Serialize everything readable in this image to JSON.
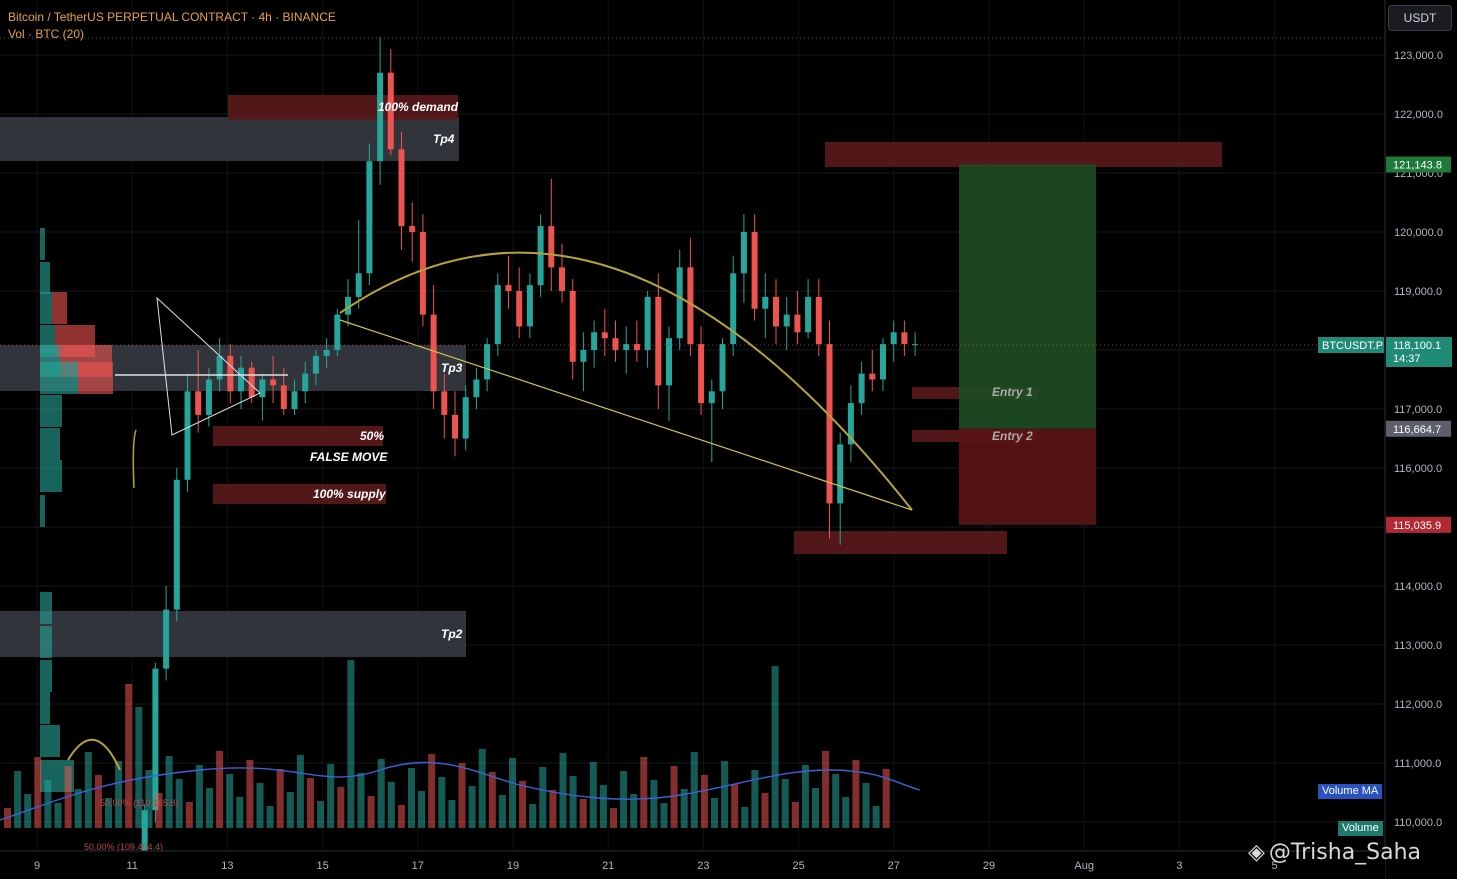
{
  "header": {
    "title": "Bitcoin / TetherUS PERPETUAL CONTRACT · 4h · BINANCE",
    "indicator": "Vol · BTC (20)"
  },
  "currency_button": "USDT",
  "watermark": "@Trisha_Saha",
  "price_axis": {
    "ticks": [
      "123,000.0",
      "122,000.0",
      "121,000.0",
      "120,000.0",
      "119,000.0",
      "118,000.0",
      "117,000.0",
      "116,000.0",
      "115,000.0",
      "114,000.0",
      "113,000.0",
      "112,000.0",
      "111,000.0",
      "110,000.0"
    ],
    "symbol_tag": "BTCUSDT.P",
    "last_price": "118,100.1",
    "countdown": "14:37",
    "target_price": "121,143.8",
    "entry_price": "116,664.7",
    "stop_price": "115,035.9"
  },
  "time_axis": {
    "ticks": [
      "9",
      "11",
      "13",
      "15",
      "17",
      "19",
      "21",
      "23",
      "25",
      "27",
      "29",
      "Aug",
      "3",
      "5"
    ]
  },
  "volume_labels": {
    "ma": "Volume MA",
    "volume": "Volume"
  },
  "zones": {
    "demand": "100% demand",
    "tp4": "Tp4",
    "tp3": "Tp3",
    "tp2": "Tp2",
    "half": "50%",
    "false_move": "FALSE MOVE",
    "supply": "100% supply",
    "entry1": "Entry 1",
    "entry2": "Entry 2"
  },
  "mini_fib": {
    "level1": "50.00% (110,165.8)",
    "level2": "50.00% (109,404.4)"
  },
  "colors": {
    "up": "#26a69a",
    "down": "#ef5350",
    "curve": "#b5a23a",
    "trendline": "#d4c24a",
    "zone_gray": "#3a3d44",
    "zone_red": "#5a1a1c",
    "target_green": "#1e4d22",
    "stop_red": "#5c1416",
    "ma_line": "#3a63d6"
  },
  "chart_data": {
    "type": "candlestick",
    "symbol": "BTCUSDT.P",
    "timeframe": "4h",
    "y_range": [
      109800,
      123300
    ],
    "dates": [
      "9",
      "11",
      "13",
      "15",
      "17",
      "19",
      "21",
      "23",
      "25",
      "27",
      "29",
      "Aug",
      "3",
      "5"
    ],
    "candles": [
      [
        108800,
        109400,
        108500,
        109300
      ],
      [
        109300,
        110300,
        109100,
        110200
      ],
      [
        110200,
        112700,
        110000,
        112600
      ],
      [
        112600,
        114000,
        112400,
        113600
      ],
      [
        113600,
        116000,
        113400,
        115800
      ],
      [
        115800,
        117600,
        115600,
        117300
      ],
      [
        117300,
        118000,
        116600,
        116900
      ],
      [
        116900,
        117700,
        116700,
        117500
      ],
      [
        117500,
        118200,
        117300,
        117900
      ],
      [
        117900,
        118100,
        117100,
        117300
      ],
      [
        117300,
        117900,
        117000,
        117700
      ],
      [
        117700,
        117800,
        117100,
        117200
      ],
      [
        117200,
        117600,
        116800,
        117500
      ],
      [
        117500,
        117900,
        117100,
        117400
      ],
      [
        117400,
        117700,
        116900,
        117000
      ],
      [
        117000,
        117500,
        116900,
        117300
      ],
      [
        117300,
        117800,
        117100,
        117600
      ],
      [
        117600,
        118000,
        117400,
        117900
      ],
      [
        117900,
        118200,
        117700,
        118000
      ],
      [
        118000,
        118700,
        117900,
        118600
      ],
      [
        118600,
        119200,
        118400,
        118900
      ],
      [
        118900,
        120200,
        118700,
        119300
      ],
      [
        119300,
        121500,
        119100,
        121200
      ],
      [
        121200,
        123300,
        120800,
        122700
      ],
      [
        122700,
        123100,
        121300,
        121400
      ],
      [
        121400,
        121700,
        119700,
        120100
      ],
      [
        120100,
        120500,
        119500,
        120000
      ],
      [
        120000,
        120300,
        118400,
        118600
      ],
      [
        118600,
        119100,
        117000,
        117300
      ],
      [
        117300,
        117600,
        116500,
        116900
      ],
      [
        116900,
        117300,
        116200,
        116500
      ],
      [
        116500,
        117400,
        116300,
        117200
      ],
      [
        117200,
        117700,
        117000,
        117500
      ],
      [
        117500,
        118200,
        117300,
        118100
      ],
      [
        118100,
        119300,
        117900,
        119100
      ],
      [
        119100,
        119600,
        118700,
        119000
      ],
      [
        119000,
        119400,
        118200,
        118400
      ],
      [
        118400,
        119300,
        118200,
        119100
      ],
      [
        119100,
        120300,
        118900,
        120100
      ],
      [
        120100,
        120900,
        119000,
        119400
      ],
      [
        119400,
        119800,
        118800,
        119000
      ],
      [
        119000,
        119200,
        117500,
        117800
      ],
      [
        117800,
        118300,
        117300,
        118000
      ],
      [
        118000,
        118500,
        117700,
        118300
      ],
      [
        118300,
        118700,
        117900,
        118200
      ],
      [
        118200,
        118500,
        117800,
        118000
      ],
      [
        118000,
        118400,
        117600,
        118100
      ],
      [
        118100,
        118500,
        117800,
        118000
      ],
      [
        118000,
        119000,
        117700,
        118900
      ],
      [
        118900,
        119300,
        117000,
        117400
      ],
      [
        117400,
        118400,
        116800,
        118200
      ],
      [
        118200,
        119700,
        118000,
        119400
      ],
      [
        119400,
        119900,
        117900,
        118100
      ],
      [
        118100,
        118400,
        116900,
        117100
      ],
      [
        117100,
        117500,
        116100,
        117300
      ],
      [
        117300,
        118200,
        117000,
        118100
      ],
      [
        118100,
        119600,
        117900,
        119300
      ],
      [
        119300,
        120300,
        118800,
        120000
      ],
      [
        120000,
        120300,
        118500,
        118700
      ],
      [
        118700,
        119300,
        118200,
        118900
      ],
      [
        118900,
        119200,
        118100,
        118400
      ],
      [
        118400,
        118900,
        118000,
        118600
      ],
      [
        118600,
        119000,
        118100,
        118300
      ],
      [
        118300,
        119200,
        118200,
        118900
      ],
      [
        118900,
        119200,
        117900,
        118100
      ],
      [
        118100,
        118500,
        114800,
        115400
      ],
      [
        115400,
        116600,
        114700,
        116400
      ],
      [
        116400,
        117400,
        116100,
        117100
      ],
      [
        117100,
        117800,
        116900,
        117600
      ],
      [
        117600,
        118000,
        117300,
        117500
      ],
      [
        117500,
        118200,
        117300,
        118100
      ],
      [
        118100,
        118500,
        117800,
        118300
      ],
      [
        118300,
        118500,
        117900,
        118100
      ],
      [
        118100,
        118300,
        117900,
        118100
      ]
    ],
    "volume_ma_note": "Volume (20) with moving average",
    "annotations": [
      "100% demand",
      "Tp4",
      "Tp3",
      "Tp2",
      "50%",
      "FALSE MOVE",
      "100% supply",
      "Entry 1",
      "Entry 2"
    ],
    "position": {
      "target": 121143.8,
      "entry": 116664.7,
      "stop": 115035.9
    }
  }
}
